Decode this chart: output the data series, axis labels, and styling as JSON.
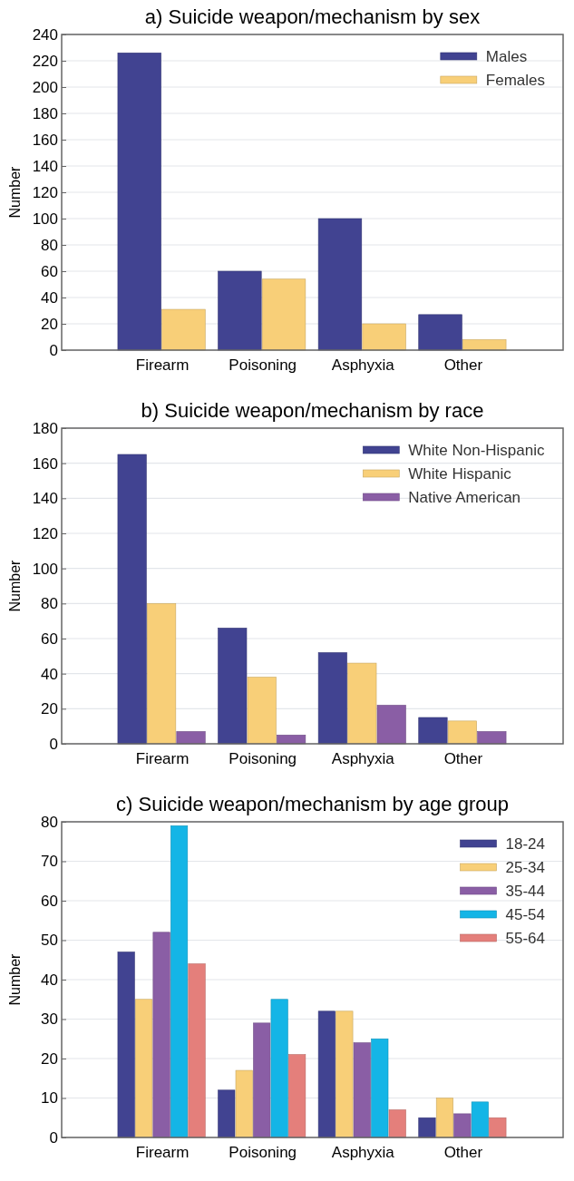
{
  "chart_data": [
    {
      "type": "bar",
      "title": "a) Suicide weapon/mechanism by sex",
      "ylabel": "Number",
      "categories": [
        "Firearm",
        "Poisoning",
        "Asphyxia",
        "Other"
      ],
      "ylim": [
        0,
        240
      ],
      "yticks": [
        0,
        20,
        40,
        60,
        80,
        100,
        120,
        140,
        160,
        180,
        200,
        220,
        240
      ],
      "grid": "y",
      "legend": "top right",
      "series": [
        {
          "name": "Males",
          "color": "#414391",
          "values": [
            226,
            60,
            100,
            27
          ]
        },
        {
          "name": "Females",
          "color": "#f8cf78",
          "values": [
            31,
            54,
            20,
            8
          ]
        }
      ]
    },
    {
      "type": "bar",
      "title": "b) Suicide weapon/mechanism by race",
      "ylabel": "Number",
      "categories": [
        "Firearm",
        "Poisoning",
        "Asphyxia",
        "Other"
      ],
      "ylim": [
        0,
        180
      ],
      "yticks": [
        0,
        20,
        40,
        60,
        80,
        100,
        120,
        140,
        160,
        180
      ],
      "grid": "y",
      "legend": "top right",
      "series": [
        {
          "name": "White Non-Hispanic",
          "color": "#414391",
          "values": [
            165,
            66,
            52,
            15
          ]
        },
        {
          "name": "White Hispanic",
          "color": "#f8cf78",
          "values": [
            80,
            38,
            46,
            13
          ]
        },
        {
          "name": "Native American",
          "color": "#8a5ea5",
          "values": [
            7,
            5,
            22,
            7
          ]
        }
      ]
    },
    {
      "type": "bar",
      "title": "c) Suicide weapon/mechanism by age group",
      "ylabel": "Number",
      "categories": [
        "Firearm",
        "Poisoning",
        "Asphyxia",
        "Other"
      ],
      "ylim": [
        0,
        80
      ],
      "yticks": [
        0,
        10,
        20,
        30,
        40,
        50,
        60,
        70,
        80
      ],
      "grid": "y",
      "legend": "top right",
      "series": [
        {
          "name": "18-24",
          "color": "#414391",
          "values": [
            47,
            12,
            32,
            5
          ]
        },
        {
          "name": "25-34",
          "color": "#f8cf78",
          "values": [
            35,
            17,
            32,
            10
          ]
        },
        {
          "name": "35-44",
          "color": "#8a5ea5",
          "values": [
            52,
            29,
            24,
            6
          ]
        },
        {
          "name": "45-54",
          "color": "#14b5e6",
          "values": [
            79,
            35,
            25,
            9
          ]
        },
        {
          "name": "55-64",
          "color": "#e47f7b",
          "values": [
            44,
            21,
            7,
            5
          ]
        }
      ]
    }
  ]
}
